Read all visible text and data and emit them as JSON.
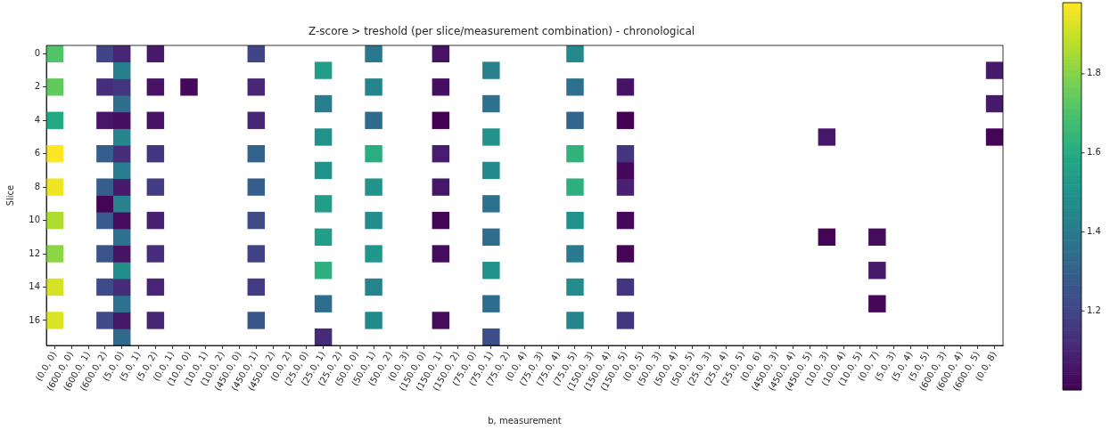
{
  "chart_data": {
    "type": "heatmap",
    "title": "Z-score > treshold (per slice/measurement combination) - chronological",
    "xlabel": "b, measurement",
    "ylabel": "Slice",
    "categories": [
      "(0.0, 0)",
      "(600.0, 0)",
      "(600.0, 1)",
      "(600.0, 2)",
      "(5.0, 0)",
      "(5.0, 1)",
      "(5.0, 2)",
      "(0.0, 1)",
      "(10.0, 0)",
      "(10.0, 1)",
      "(10.0, 2)",
      "(450.0, 0)",
      "(450.0, 1)",
      "(450.0, 2)",
      "(0.0, 2)",
      "(25.0, 0)",
      "(25.0, 1)",
      "(25.0, 2)",
      "(50.0, 0)",
      "(50.0, 1)",
      "(50.0, 2)",
      "(0.0, 3)",
      "(150.0, 0)",
      "(150.0, 1)",
      "(150.0, 2)",
      "(75.0, 0)",
      "(75.0, 1)",
      "(75.0, 2)",
      "(0.0, 4)",
      "(75.0, 3)",
      "(75.0, 4)",
      "(75.0, 5)",
      "(150.0, 3)",
      "(150.0, 4)",
      "(150.0, 5)",
      "(0.0, 5)",
      "(50.0, 3)",
      "(50.0, 4)",
      "(50.0, 5)",
      "(25.0, 3)",
      "(25.0, 4)",
      "(25.0, 5)",
      "(0.0, 6)",
      "(450.0, 3)",
      "(450.0, 4)",
      "(450.0, 5)",
      "(10.0, 3)",
      "(10.0, 4)",
      "(10.0, 5)",
      "(0.0, 7)",
      "(5.0, 3)",
      "(5.0, 4)",
      "(5.0, 5)",
      "(600.0, 3)",
      "(600.0, 4)",
      "(600.0, 5)",
      "(0.0, 8)"
    ],
    "y_categories": [
      "0",
      null,
      "2",
      null,
      "4",
      null,
      "6",
      null,
      "8",
      null,
      "10",
      null,
      "12",
      null,
      "14",
      null,
      "16",
      null
    ],
    "cells": [
      [
        1.71,
        null,
        null,
        1.2,
        1.1,
        null,
        1.07,
        null,
        null,
        null,
        null,
        null,
        1.2,
        null,
        null,
        null,
        null,
        null,
        null,
        1.39,
        null,
        null,
        null,
        1.05,
        null,
        null,
        null,
        null,
        null,
        null,
        null,
        1.46,
        null,
        null,
        null,
        null,
        null,
        null,
        null,
        null,
        null,
        null,
        null,
        null,
        null,
        null,
        null,
        null,
        null,
        null,
        null,
        null,
        null,
        null,
        null,
        null,
        null
      ],
      [
        null,
        null,
        null,
        null,
        1.42,
        null,
        null,
        null,
        null,
        null,
        null,
        null,
        null,
        null,
        null,
        null,
        1.54,
        null,
        null,
        null,
        null,
        null,
        null,
        null,
        null,
        null,
        1.43,
        null,
        null,
        null,
        null,
        null,
        null,
        null,
        null,
        null,
        null,
        null,
        null,
        null,
        null,
        null,
        null,
        null,
        null,
        null,
        null,
        null,
        null,
        null,
        null,
        null,
        null,
        null,
        null,
        null,
        1.07
      ],
      [
        1.74,
        null,
        null,
        1.13,
        1.15,
        null,
        1.05,
        null,
        1.02,
        null,
        null,
        null,
        1.11,
        null,
        null,
        null,
        null,
        null,
        null,
        1.44,
        null,
        null,
        null,
        1.04,
        null,
        null,
        null,
        null,
        null,
        null,
        null,
        1.36,
        null,
        null,
        1.05,
        null,
        null,
        null,
        null,
        null,
        null,
        null,
        null,
        null,
        null,
        null,
        null,
        null,
        null,
        null,
        null,
        null,
        null,
        null,
        null,
        null,
        null
      ],
      [
        null,
        null,
        null,
        null,
        1.35,
        null,
        null,
        null,
        null,
        null,
        null,
        null,
        null,
        null,
        null,
        null,
        1.41,
        null,
        null,
        null,
        null,
        null,
        null,
        null,
        null,
        null,
        1.37,
        null,
        null,
        null,
        null,
        null,
        null,
        null,
        null,
        null,
        null,
        null,
        null,
        null,
        null,
        null,
        null,
        null,
        null,
        null,
        null,
        null,
        null,
        null,
        null,
        null,
        null,
        null,
        null,
        null,
        1.07
      ],
      [
        1.59,
        null,
        null,
        1.06,
        1.04,
        null,
        1.05,
        null,
        null,
        null,
        null,
        null,
        1.1,
        null,
        null,
        null,
        null,
        null,
        null,
        1.34,
        null,
        null,
        null,
        1.0,
        null,
        null,
        null,
        null,
        null,
        null,
        null,
        1.32,
        null,
        null,
        1.0,
        null,
        null,
        null,
        null,
        null,
        null,
        null,
        null,
        null,
        null,
        null,
        null,
        null,
        null,
        null,
        null,
        null,
        null,
        null,
        null,
        null,
        null
      ],
      [
        null,
        null,
        null,
        null,
        1.45,
        null,
        null,
        null,
        null,
        null,
        null,
        null,
        null,
        null,
        null,
        null,
        1.49,
        null,
        null,
        null,
        null,
        null,
        null,
        null,
        null,
        null,
        1.5,
        null,
        null,
        null,
        null,
        null,
        null,
        null,
        null,
        null,
        null,
        null,
        null,
        null,
        null,
        null,
        null,
        null,
        null,
        null,
        1.06,
        null,
        null,
        null,
        null,
        null,
        null,
        null,
        null,
        null,
        1.01
      ],
      [
        1.98,
        null,
        null,
        1.29,
        1.13,
        null,
        1.15,
        null,
        null,
        null,
        null,
        null,
        1.31,
        null,
        null,
        null,
        null,
        null,
        null,
        1.61,
        null,
        null,
        null,
        1.08,
        null,
        null,
        null,
        null,
        null,
        null,
        null,
        1.63,
        null,
        null,
        1.15,
        null,
        null,
        null,
        null,
        null,
        null,
        null,
        null,
        null,
        null,
        null,
        null,
        null,
        null,
        null,
        null,
        null,
        null,
        null,
        null,
        null,
        null
      ],
      [
        null,
        null,
        null,
        null,
        1.41,
        null,
        null,
        null,
        null,
        null,
        null,
        null,
        null,
        null,
        null,
        null,
        1.49,
        null,
        null,
        null,
        null,
        null,
        null,
        null,
        null,
        null,
        1.46,
        null,
        null,
        null,
        null,
        null,
        null,
        null,
        1.02,
        null,
        null,
        null,
        null,
        null,
        null,
        null,
        null,
        null,
        null,
        null,
        null,
        null,
        null,
        null,
        null,
        null,
        null,
        null,
        null,
        null,
        null
      ],
      [
        1.96,
        null,
        null,
        1.29,
        1.07,
        null,
        1.17,
        null,
        null,
        null,
        null,
        null,
        1.29,
        null,
        null,
        null,
        null,
        null,
        null,
        1.5,
        null,
        null,
        null,
        1.06,
        null,
        null,
        null,
        null,
        null,
        null,
        null,
        1.62,
        null,
        null,
        1.09,
        null,
        null,
        null,
        null,
        null,
        null,
        null,
        null,
        null,
        null,
        null,
        null,
        null,
        null,
        null,
        null,
        null,
        null,
        null,
        null,
        null,
        null
      ],
      [
        null,
        null,
        null,
        1.01,
        1.43,
        null,
        null,
        null,
        null,
        null,
        null,
        null,
        null,
        null,
        null,
        null,
        1.54,
        null,
        null,
        null,
        null,
        null,
        null,
        null,
        null,
        null,
        1.37,
        null,
        null,
        null,
        null,
        null,
        null,
        null,
        null,
        null,
        null,
        null,
        null,
        null,
        null,
        null,
        null,
        null,
        null,
        null,
        null,
        null,
        null,
        null,
        null,
        null,
        null,
        null,
        null,
        null,
        null
      ],
      [
        1.86,
        null,
        null,
        1.28,
        1.03,
        null,
        1.09,
        null,
        null,
        null,
        null,
        null,
        1.22,
        null,
        null,
        null,
        null,
        null,
        null,
        1.47,
        null,
        null,
        null,
        1.01,
        null,
        null,
        null,
        null,
        null,
        null,
        null,
        1.49,
        null,
        null,
        1.02,
        null,
        null,
        null,
        null,
        null,
        null,
        null,
        null,
        null,
        null,
        null,
        null,
        null,
        null,
        null,
        null,
        null,
        null,
        null,
        null,
        null,
        null
      ],
      [
        null,
        null,
        null,
        null,
        1.37,
        null,
        null,
        null,
        null,
        null,
        null,
        null,
        null,
        null,
        null,
        null,
        1.54,
        null,
        null,
        null,
        null,
        null,
        null,
        null,
        null,
        null,
        1.35,
        null,
        null,
        null,
        null,
        null,
        null,
        null,
        null,
        null,
        null,
        null,
        null,
        null,
        null,
        null,
        null,
        null,
        null,
        null,
        1.01,
        null,
        null,
        1.03,
        null,
        null,
        null,
        null,
        null,
        null,
        null
      ],
      [
        1.81,
        null,
        null,
        1.25,
        1.05,
        null,
        1.13,
        null,
        null,
        null,
        null,
        null,
        1.19,
        null,
        null,
        null,
        null,
        null,
        null,
        1.51,
        null,
        null,
        null,
        1.03,
        null,
        null,
        null,
        null,
        null,
        null,
        null,
        1.4,
        null,
        null,
        1.01,
        null,
        null,
        null,
        null,
        null,
        null,
        null,
        null,
        null,
        null,
        null,
        null,
        null,
        null,
        null,
        null,
        null,
        null,
        null,
        null,
        null,
        null
      ],
      [
        null,
        null,
        null,
        null,
        1.48,
        null,
        null,
        null,
        null,
        null,
        null,
        null,
        null,
        null,
        null,
        null,
        1.62,
        null,
        null,
        null,
        null,
        null,
        null,
        null,
        null,
        null,
        1.49,
        null,
        null,
        null,
        null,
        null,
        null,
        null,
        null,
        null,
        null,
        null,
        null,
        null,
        null,
        null,
        null,
        null,
        null,
        null,
        null,
        null,
        null,
        1.07,
        null,
        null,
        null,
        null,
        null,
        null,
        null
      ],
      [
        1.92,
        null,
        null,
        1.22,
        1.12,
        null,
        1.1,
        null,
        null,
        null,
        null,
        null,
        1.17,
        null,
        null,
        null,
        null,
        null,
        null,
        1.44,
        null,
        null,
        null,
        null,
        null,
        null,
        null,
        null,
        null,
        null,
        null,
        1.47,
        null,
        null,
        1.15,
        null,
        null,
        null,
        null,
        null,
        null,
        null,
        null,
        null,
        null,
        null,
        null,
        null,
        null,
        null,
        null,
        null,
        null,
        null,
        null,
        null,
        null
      ],
      [
        null,
        null,
        null,
        null,
        1.37,
        null,
        null,
        null,
        null,
        null,
        null,
        null,
        null,
        null,
        null,
        null,
        1.35,
        null,
        null,
        null,
        null,
        null,
        null,
        null,
        null,
        null,
        1.35,
        null,
        null,
        null,
        null,
        null,
        null,
        null,
        null,
        null,
        null,
        null,
        null,
        null,
        null,
        null,
        null,
        null,
        null,
        null,
        null,
        null,
        null,
        1.02,
        null,
        null,
        null,
        null,
        null,
        null,
        null
      ],
      [
        1.93,
        null,
        null,
        1.22,
        1.06,
        null,
        1.1,
        null,
        null,
        null,
        null,
        null,
        1.26,
        null,
        null,
        null,
        null,
        null,
        null,
        1.46,
        null,
        null,
        null,
        1.03,
        null,
        null,
        null,
        null,
        null,
        null,
        null,
        1.44,
        null,
        null,
        1.15,
        null,
        null,
        null,
        null,
        null,
        null,
        null,
        null,
        null,
        null,
        null,
        null,
        null,
        null,
        null,
        null,
        null,
        null,
        null,
        null,
        null,
        null
      ],
      [
        null,
        null,
        null,
        null,
        1.34,
        null,
        null,
        null,
        null,
        null,
        null,
        null,
        null,
        null,
        null,
        null,
        1.12,
        null,
        null,
        null,
        null,
        null,
        null,
        null,
        null,
        null,
        1.23,
        null,
        null,
        null,
        null,
        null,
        null,
        null,
        null,
        null,
        null,
        null,
        null,
        null,
        null,
        null,
        null,
        null,
        null,
        null,
        null,
        null,
        null,
        null,
        null,
        null,
        null,
        null,
        null,
        null,
        null
      ]
    ],
    "clim": [
      1.0,
      1.98
    ],
    "cticks": [
      1.2,
      1.4,
      1.6,
      1.8
    ]
  }
}
